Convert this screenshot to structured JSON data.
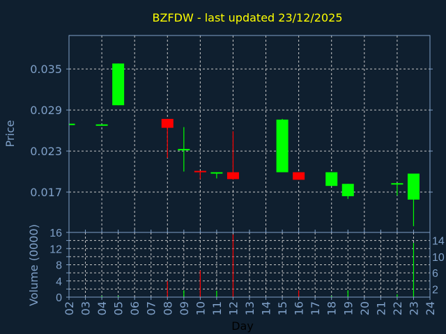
{
  "chart_data": [
    {
      "type": "candlestick",
      "title": "BZFDW - last updated 23/12/2025",
      "ylabel": "Price",
      "ylim": [
        0.0111,
        0.0399
      ],
      "yticks": [
        "0.035",
        "0.029",
        "0.023",
        "0.017"
      ],
      "ytick_values": [
        0.035,
        0.029,
        0.023,
        0.017
      ],
      "grid": true,
      "colors": {
        "up": "#00ff00",
        "down": "#ff0000",
        "background": "#0f1f2f",
        "axis": "#7fa0c8",
        "title": "#ffff00"
      },
      "candles": [
        {
          "day": 2,
          "open": 0.0269,
          "high": 0.027,
          "low": 0.0269,
          "close": 0.027
        },
        {
          "day": 4,
          "open": 0.0268,
          "high": 0.0269,
          "low": 0.0268,
          "close": 0.0269
        },
        {
          "day": 5,
          "open": 0.0297,
          "high": 0.0358,
          "low": 0.0297,
          "close": 0.0358
        },
        {
          "day": 8,
          "open": 0.0277,
          "high": 0.0277,
          "low": 0.022,
          "close": 0.0264
        },
        {
          "day": 9,
          "open": 0.0232,
          "high": 0.0265,
          "low": 0.02,
          "close": 0.0233
        },
        {
          "day": 10,
          "open": 0.0201,
          "high": 0.0201,
          "low": 0.0189,
          "close": 0.0199
        },
        {
          "day": 11,
          "open": 0.0198,
          "high": 0.0199,
          "low": 0.019,
          "close": 0.0199
        },
        {
          "day": 12,
          "open": 0.0199,
          "high": 0.0259,
          "low": 0.0188,
          "close": 0.0189
        },
        {
          "day": 15,
          "open": 0.0199,
          "high": 0.0277,
          "low": 0.0199,
          "close": 0.0276
        },
        {
          "day": 16,
          "open": 0.0199,
          "high": 0.0199,
          "low": 0.0188,
          "close": 0.0188
        },
        {
          "day": 18,
          "open": 0.0179,
          "high": 0.0199,
          "low": 0.0179,
          "close": 0.0199
        },
        {
          "day": 19,
          "open": 0.0164,
          "high": 0.0182,
          "low": 0.016,
          "close": 0.0182
        },
        {
          "day": 22,
          "open": 0.0182,
          "high": 0.0183,
          "low": 0.0165,
          "close": 0.0183
        },
        {
          "day": 23,
          "open": 0.0159,
          "high": 0.0197,
          "low": 0.012,
          "close": 0.0197
        }
      ]
    },
    {
      "type": "bar",
      "ylabel": "Volume (0000)",
      "xlabel": "Day",
      "ylim": [
        0,
        16
      ],
      "yticks": [
        "0",
        "2",
        "4",
        "6",
        "8",
        "10",
        "12",
        "14",
        "16"
      ],
      "xticks": [
        "02",
        "03",
        "04",
        "05",
        "06",
        "07",
        "08",
        "09",
        "10",
        "11",
        "12",
        "13",
        "14",
        "15",
        "16",
        "17",
        "18",
        "19",
        "20",
        "21",
        "22",
        "23",
        "24"
      ],
      "xlim": [
        2,
        24
      ],
      "bars": [
        {
          "day": 4,
          "value": 0.3,
          "dir": "up"
        },
        {
          "day": 5,
          "value": 0.3,
          "dir": "up"
        },
        {
          "day": 8,
          "value": 4.0,
          "dir": "down"
        },
        {
          "day": 9,
          "value": 1.7,
          "dir": "up"
        },
        {
          "day": 10,
          "value": 6.6,
          "dir": "down"
        },
        {
          "day": 11,
          "value": 1.6,
          "dir": "up"
        },
        {
          "day": 12,
          "value": 15.5,
          "dir": "down"
        },
        {
          "day": 16,
          "value": 1.7,
          "dir": "down"
        },
        {
          "day": 18,
          "value": 0.3,
          "dir": "up"
        },
        {
          "day": 19,
          "value": 1.7,
          "dir": "up"
        },
        {
          "day": 22,
          "value": 0.7,
          "dir": "up"
        },
        {
          "day": 23,
          "value": 13.4,
          "dir": "up"
        }
      ]
    }
  ]
}
